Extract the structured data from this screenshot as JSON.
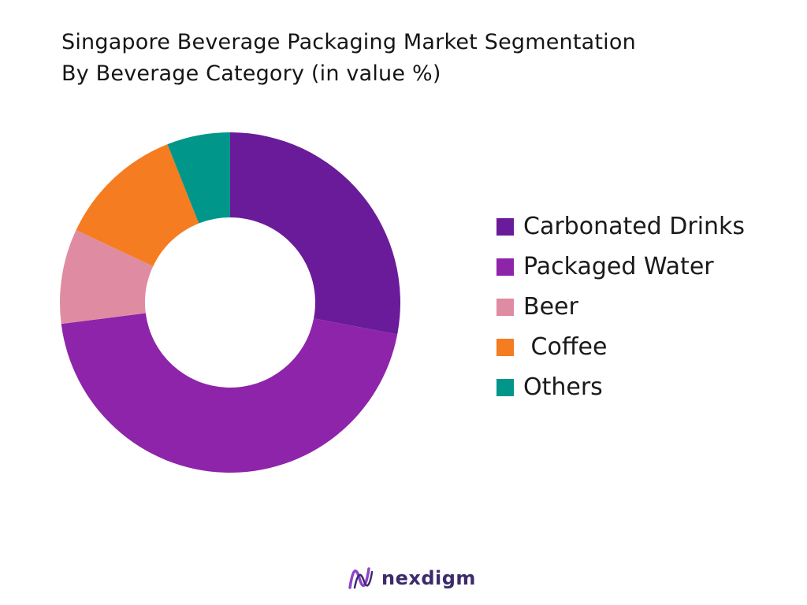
{
  "header": {
    "title_line1": "Singapore Beverage Packaging Market Segmentation",
    "title_line2": "By Beverage Category (in value %)"
  },
  "chart_data": {
    "type": "pie",
    "variant": "donut",
    "title": "Singapore Beverage Packaging Market Segmentation By Beverage Category (in value %)",
    "categories": [
      "Carbonated Drinks",
      "Packaged Water",
      "Beer",
      " Coffee",
      "Others"
    ],
    "values": [
      28,
      45,
      9,
      12,
      6
    ],
    "colors": [
      "#6a1b9a",
      "#8e24aa",
      "#df8ca3",
      "#f57c20",
      "#00968a"
    ],
    "legend_position": "right",
    "legend_labels": [
      "Carbonated Drinks",
      "Packaged Water",
      "Beer",
      " Coffee",
      "Others"
    ]
  },
  "brand": {
    "logo_text": "nexdigm",
    "logo_colors": [
      "#8e44c9",
      "#3d2a6b"
    ]
  }
}
